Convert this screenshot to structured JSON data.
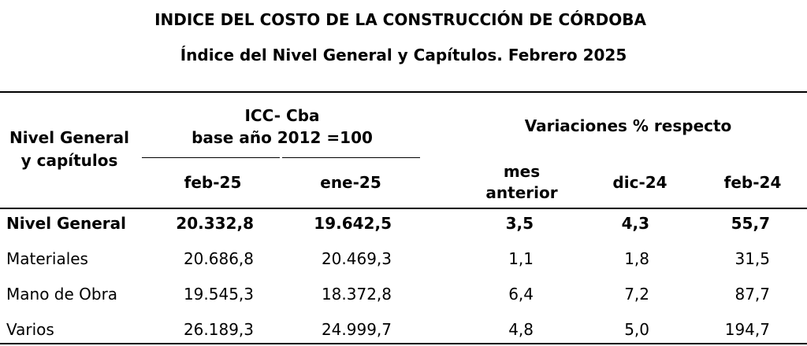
{
  "header": {
    "title": "INDICE DEL COSTO DE LA CONSTRUCCIÓN DE CÓRDOBA",
    "subtitle": "Índice del Nivel General y Capítulos.  Febrero 2025"
  },
  "table": {
    "row_header": [
      "Nivel General",
      "y capítulos"
    ],
    "group_index": [
      "ICC- Cba",
      "base año 2012 =100"
    ],
    "group_variation": "Variaciones % respecto",
    "columns": [
      [
        "feb-25"
      ],
      [
        "ene-25"
      ],
      [
        "mes",
        "anterior"
      ],
      [
        "dic-24"
      ],
      [
        "feb-24"
      ]
    ],
    "rows": [
      [
        "Nivel General",
        "20.332,8",
        "19.642,5",
        "3,5",
        "4,3",
        "55,7"
      ],
      [
        "Materiales",
        "20.686,8",
        "20.469,3",
        "1,1",
        "1,8",
        "31,5"
      ],
      [
        "Mano de Obra",
        "19.545,3",
        "18.372,8",
        "6,4",
        "7,2",
        "87,7"
      ],
      [
        "Varios",
        "26.189,3",
        "24.999,7",
        "4,8",
        "5,0",
        "194,7"
      ]
    ]
  }
}
